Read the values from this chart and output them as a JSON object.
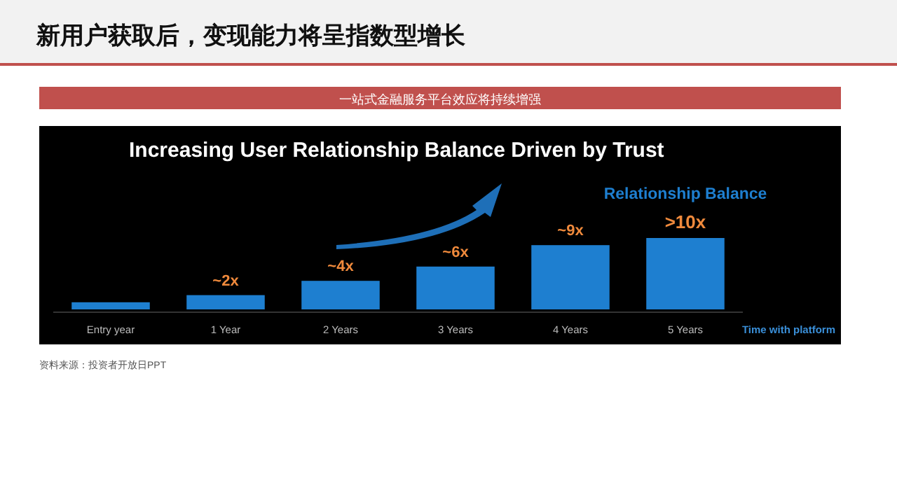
{
  "chart_data": {
    "type": "bar",
    "title": "新用户获取后，变现能力将呈指数型增长",
    "subtitle": "一站式金融服务平台效应将持续增强",
    "annotations": [
      "Increasing User Relationship Balance Driven by Trust",
      "资料来源：投资者开放日PPT"
    ],
    "categories": [
      "Entry year",
      "1 Year",
      "2 Years",
      "3 Years",
      "4 Years",
      "5 Years"
    ],
    "xlabel": "Time with platform",
    "series": [
      {
        "name": "Relationship Balance",
        "color": "#1e7fd0",
        "values": [
          1,
          2,
          4,
          6,
          9,
          10
        ],
        "value_labels": [
          null,
          "~2x",
          "~4x",
          "~6x",
          "~9x",
          ">10x"
        ]
      }
    ]
  }
}
